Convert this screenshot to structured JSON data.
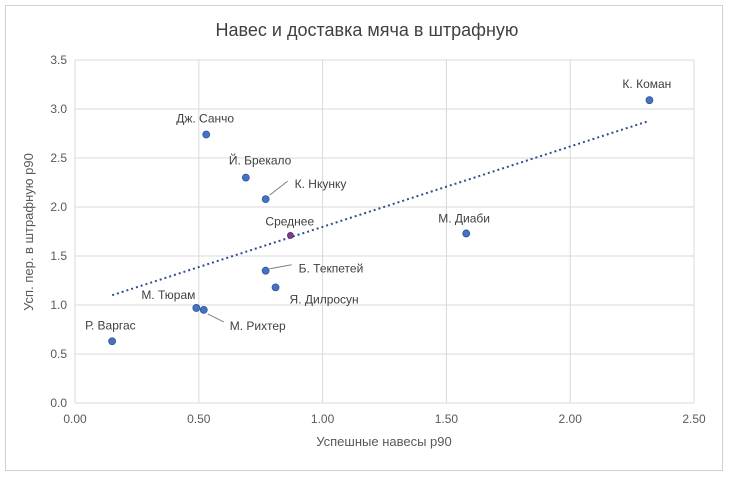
{
  "chart_data": {
    "type": "scatter",
    "title": "Навес и доставка мяча в штрафную",
    "xlabel": "Успешные навесы р90",
    "ylabel": "Усп. пер. в штрафную р90",
    "xlim": [
      0,
      2.5
    ],
    "ylim": [
      0,
      3.5
    ],
    "x_ticks": [
      "0.00",
      "0.50",
      "1.00",
      "1.50",
      "2.00",
      "2.50"
    ],
    "y_ticks": [
      "0.0",
      "0.5",
      "1.0",
      "1.5",
      "2.0",
      "2.5",
      "3.0",
      "3.5"
    ],
    "grid": "vertical and horizontal",
    "point_color": "#4472C4",
    "average_color": "#7B3F8C",
    "trendline": {
      "style": "dotted",
      "color": "#2F4F8F",
      "x": [
        0.15,
        2.32
      ],
      "y": [
        1.1,
        2.88
      ]
    },
    "points": [
      {
        "name": "Р. Варгас",
        "x": 0.15,
        "y": 0.63
      },
      {
        "name": "М. Тюрам",
        "x": 0.49,
        "y": 0.97
      },
      {
        "name": "М. Рихтер",
        "x": 0.52,
        "y": 0.95
      },
      {
        "name": "Дж. Санчо",
        "x": 0.53,
        "y": 2.74
      },
      {
        "name": "Й. Брекало",
        "x": 0.69,
        "y": 2.3
      },
      {
        "name": "К. Нкунку",
        "x": 0.77,
        "y": 2.08
      },
      {
        "name": "Б. Текпетей",
        "x": 0.77,
        "y": 1.35
      },
      {
        "name": "Я. Дилросун",
        "x": 0.81,
        "y": 1.18
      },
      {
        "name": "Среднее",
        "x": 0.87,
        "y": 1.71,
        "average": true
      },
      {
        "name": "М. Диаби",
        "x": 1.58,
        "y": 1.73
      },
      {
        "name": "К. Коман",
        "x": 2.32,
        "y": 3.09
      }
    ]
  }
}
